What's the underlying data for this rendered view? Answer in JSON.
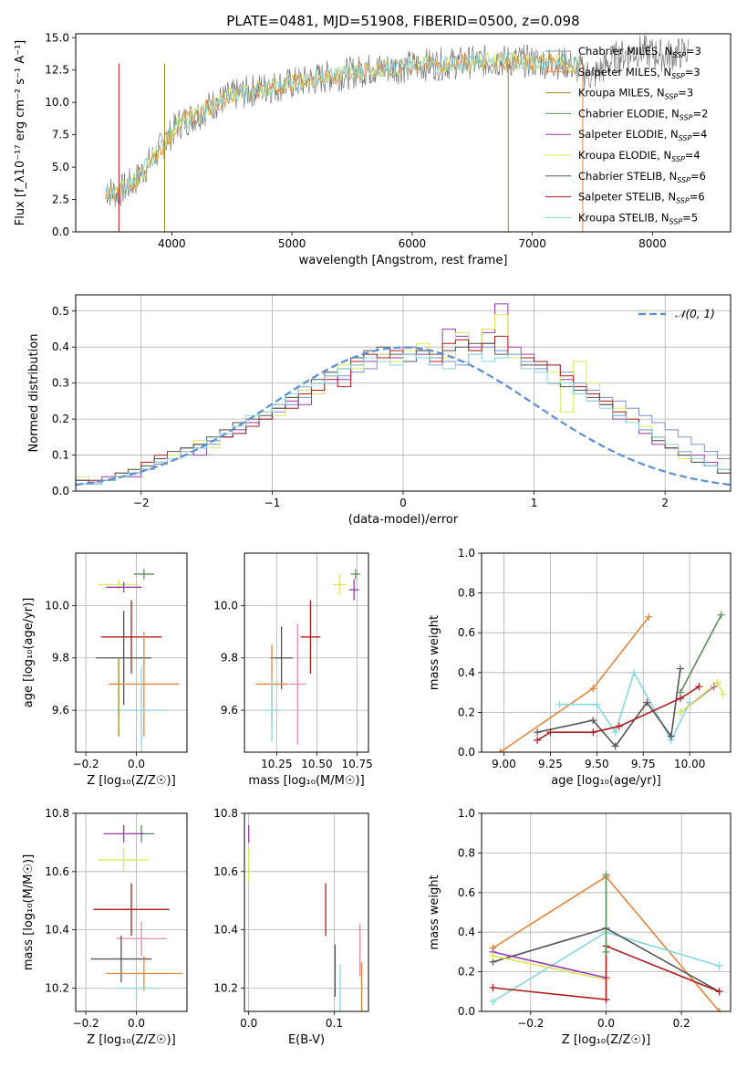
{
  "title": "PLATE=0481, MJD=51908, FIBERID=0500, z=0.098",
  "colors": {
    "Chabrier MILES": "#7b8fcf",
    "Salpeter MILES": "#e8843a",
    "Kroupa MILES": "#a38a1e",
    "Chabrier ELODIE": "#5a8f5a",
    "Salpeter ELODIE": "#9b3ab0",
    "Kroupa ELODIE": "#d8ea5a",
    "Chabrier STELIB": "#555555",
    "Salpeter STELIB": "#b01c1c",
    "Kroupa STELIB": "#86d8e0",
    "pink": "#e58ab0",
    "gauss": "#5b8fd6"
  },
  "chart_data": [
    {
      "id": "spectrum",
      "type": "line",
      "xlabel": "wavelength [Angstrom, rest frame]",
      "ylabel": "Flux [f_λ10⁻¹⁷ erg cm⁻² s⁻¹ A⁻¹]",
      "xlim": [
        3200,
        8650
      ],
      "ylim": [
        0,
        15.3
      ],
      "xticks": [
        4000,
        5000,
        6000,
        7000,
        8000
      ],
      "yticks": [
        0.0,
        2.5,
        5.0,
        7.5,
        10.0,
        12.5,
        15.0
      ],
      "legend": [
        "Chabrier MILES, N_SSP=3",
        "Salpeter MILES, N_SSP=3",
        "Kroupa MILES, N_SSP=3",
        "Chabrier ELODIE, N_SSP=2",
        "Salpeter ELODIE, N_SSP=4",
        "Kroupa ELODIE, N_SSP=4",
        "Chabrier STELIB, N_SSP=6",
        "Salpeter STELIB, N_SSP=6",
        "Kroupa STELIB, N_SSP=5"
      ],
      "legend_placement": "top-right",
      "continuum": {
        "x": [
          3450,
          3550,
          3700,
          3850,
          3950,
          4050,
          4200,
          4350,
          4500,
          4700,
          4900,
          5100,
          5300,
          5500,
          5700,
          5900,
          6100,
          6300,
          6500,
          6700,
          6900,
          7100,
          7300,
          7400
        ],
        "y": [
          3.2,
          3.0,
          4.0,
          5.8,
          7.0,
          8.3,
          9.0,
          9.9,
          10.5,
          11.0,
          11.3,
          11.6,
          12.0,
          12.3,
          12.6,
          12.7,
          12.9,
          13.0,
          13.1,
          13.2,
          13.2,
          13.1,
          13.0,
          12.8
        ]
      },
      "data_flux": {
        "x": [
          3450,
          3550,
          3700,
          3850,
          3950,
          4050,
          4200,
          4350,
          4500,
          4700,
          4900,
          5100,
          5300,
          5500,
          5700,
          5900,
          6100,
          6300,
          6500,
          6700,
          6900,
          7100,
          7300,
          7500,
          7700,
          7900,
          8100,
          8300
        ],
        "y": [
          3.2,
          3.0,
          4.0,
          5.8,
          7.0,
          8.3,
          9.0,
          9.9,
          10.5,
          11.0,
          11.3,
          11.6,
          12.0,
          12.3,
          12.6,
          12.7,
          12.9,
          13.0,
          13.1,
          13.2,
          13.2,
          13.1,
          13.0,
          12.0,
          13.5,
          14.0,
          13.6,
          13.9
        ]
      }
    },
    {
      "id": "residuals",
      "type": "histogram",
      "xlabel": "(data-model)/error",
      "ylabel": "Normed distribution",
      "xlim": [
        -2.5,
        2.5
      ],
      "ylim": [
        0,
        0.545
      ],
      "xticks": [
        -2,
        -1,
        0,
        1,
        2
      ],
      "yticks": [
        0.0,
        0.1,
        0.2,
        0.3,
        0.4,
        0.5
      ],
      "legend": [
        "𝒩(0, 1)"
      ],
      "legend_placement": "top-right",
      "bin_edges_step": 0.1,
      "series": [
        {
          "name": "Chabrier MILES",
          "values": [
            0.03,
            0.025,
            0.03,
            0.04,
            0.05,
            0.06,
            0.075,
            0.09,
            0.1,
            0.12,
            0.13,
            0.15,
            0.16,
            0.18,
            0.2,
            0.22,
            0.24,
            0.26,
            0.28,
            0.3,
            0.32,
            0.33,
            0.34,
            0.36,
            0.37,
            0.38,
            0.39,
            0.37,
            0.36,
            0.35,
            0.38,
            0.4,
            0.39,
            0.37,
            0.36,
            0.34,
            0.35,
            0.33,
            0.3,
            0.28,
            0.26,
            0.25,
            0.23,
            0.21,
            0.19,
            0.17,
            0.15,
            0.13,
            0.11,
            0.09
          ]
        },
        {
          "name": "Salpeter ELODIE",
          "values": [
            0.03,
            0.02,
            0.04,
            0.05,
            0.04,
            0.06,
            0.08,
            0.09,
            0.11,
            0.1,
            0.14,
            0.15,
            0.17,
            0.19,
            0.2,
            0.23,
            0.25,
            0.24,
            0.3,
            0.32,
            0.31,
            0.35,
            0.36,
            0.38,
            0.37,
            0.4,
            0.38,
            0.35,
            0.45,
            0.43,
            0.4,
            0.44,
            0.52,
            0.4,
            0.38,
            0.35,
            0.3,
            0.31,
            0.27,
            0.25,
            0.24,
            0.2,
            0.19,
            0.16,
            0.13,
            0.12,
            0.1,
            0.1,
            0.08,
            0.06
          ]
        },
        {
          "name": "Kroupa ELODIE",
          "values": [
            0.04,
            0.03,
            0.03,
            0.05,
            0.06,
            0.07,
            0.08,
            0.1,
            0.12,
            0.14,
            0.12,
            0.17,
            0.18,
            0.2,
            0.22,
            0.21,
            0.26,
            0.28,
            0.27,
            0.33,
            0.35,
            0.34,
            0.37,
            0.38,
            0.36,
            0.39,
            0.41,
            0.36,
            0.37,
            0.44,
            0.39,
            0.45,
            0.49,
            0.37,
            0.34,
            0.36,
            0.33,
            0.22,
            0.36,
            0.3,
            0.25,
            0.23,
            0.2,
            0.18,
            0.14,
            0.12,
            0.09,
            0.08,
            0.07,
            0.06
          ]
        },
        {
          "name": "Salpeter STELIB",
          "values": [
            0.02,
            0.03,
            0.03,
            0.04,
            0.05,
            0.08,
            0.1,
            0.09,
            0.12,
            0.13,
            0.14,
            0.15,
            0.16,
            0.18,
            0.2,
            0.24,
            0.23,
            0.27,
            0.28,
            0.31,
            0.29,
            0.36,
            0.38,
            0.37,
            0.39,
            0.38,
            0.37,
            0.36,
            0.41,
            0.42,
            0.39,
            0.41,
            0.43,
            0.38,
            0.37,
            0.36,
            0.35,
            0.32,
            0.29,
            0.27,
            0.25,
            0.22,
            0.2,
            0.17,
            0.15,
            0.12,
            0.11,
            0.09,
            0.07,
            0.05
          ]
        },
        {
          "name": "Chabrier STELIB",
          "values": [
            0.03,
            0.02,
            0.03,
            0.05,
            0.06,
            0.07,
            0.09,
            0.11,
            0.12,
            0.13,
            0.15,
            0.17,
            0.19,
            0.2,
            0.21,
            0.23,
            0.26,
            0.29,
            0.31,
            0.33,
            0.34,
            0.37,
            0.39,
            0.4,
            0.38,
            0.36,
            0.39,
            0.38,
            0.39,
            0.4,
            0.41,
            0.41,
            0.38,
            0.38,
            0.35,
            0.35,
            0.3,
            0.29,
            0.28,
            0.26,
            0.24,
            0.21,
            0.19,
            0.17,
            0.14,
            0.12,
            0.1,
            0.08,
            0.07,
            0.05
          ]
        },
        {
          "name": "Kroupa STELIB",
          "values": [
            0.02,
            0.02,
            0.03,
            0.04,
            0.05,
            0.06,
            0.08,
            0.09,
            0.11,
            0.12,
            0.14,
            0.16,
            0.18,
            0.21,
            0.22,
            0.24,
            0.27,
            0.29,
            0.3,
            0.32,
            0.34,
            0.35,
            0.37,
            0.36,
            0.35,
            0.38,
            0.37,
            0.35,
            0.34,
            0.36,
            0.38,
            0.36,
            0.37,
            0.38,
            0.34,
            0.33,
            0.3,
            0.3,
            0.27,
            0.25,
            0.23,
            0.21,
            0.19,
            0.17,
            0.15,
            0.13,
            0.11,
            0.09,
            0.07,
            0.06
          ]
        }
      ],
      "gaussian": {
        "mu": 0,
        "sigma": 1
      }
    },
    {
      "id": "age-vs-Z",
      "type": "errorbar",
      "xlabel": "Z [log₁₀(Z/Z☉)]",
      "ylabel": "age  [log₁₀(age/yr)]",
      "xlim": [
        -0.24,
        0.2
      ],
      "ylim": [
        9.44,
        10.2
      ],
      "xticks": [
        -0.2,
        0.0
      ],
      "yticks": [
        9.6,
        9.8,
        10.0
      ],
      "points": [
        {
          "model": "Chabrier ELODIE",
          "x": 0.03,
          "xerr": 0.04,
          "y": 10.12,
          "yerr": 0.02
        },
        {
          "model": "Kroupa ELODIE",
          "x": -0.07,
          "xerr": 0.08,
          "y": 10.08,
          "yerr": 0.02
        },
        {
          "model": "Salpeter ELODIE",
          "x": -0.05,
          "xerr": 0.07,
          "y": 10.07,
          "yerr": 0.02
        },
        {
          "model": "Salpeter STELIB",
          "x": -0.02,
          "xerr": 0.12,
          "y": 9.88,
          "yerr": 0.14
        },
        {
          "model": "Chabrier STELIB",
          "x": -0.05,
          "xerr": 0.11,
          "y": 9.8,
          "yerr": 0.18
        },
        {
          "model": "Salpeter MILES",
          "x": 0.03,
          "xerr": 0.14,
          "y": 9.7,
          "yerr": 0.2
        },
        {
          "model": "Kroupa STELIB",
          "x": 0.02,
          "xerr": 0.1,
          "y": 9.6,
          "yerr": 0.17
        },
        {
          "model": "Kroupa MILES",
          "x": -0.07,
          "xerr": 0.0,
          "y": 9.65,
          "yerr": 0.15
        }
      ]
    },
    {
      "id": "age-vs-mass",
      "type": "errorbar",
      "xlabel": "mass [log₁₀(M/M☉)]",
      "ylabel": "",
      "xlim": [
        10.05,
        10.82
      ],
      "ylim": [
        9.44,
        10.2
      ],
      "xticks": [
        10.25,
        10.5,
        10.75
      ],
      "yticks": [
        9.8,
        10.0,
        9.6
      ],
      "points": [
        {
          "model": "Chabrier ELODIE",
          "x": 10.74,
          "xerr": 0.03,
          "y": 10.12,
          "yerr": 0.02
        },
        {
          "model": "Kroupa ELODIE",
          "x": 10.64,
          "xerr": 0.04,
          "y": 10.08,
          "yerr": 0.04
        },
        {
          "model": "Salpeter ELODIE",
          "x": 10.73,
          "xerr": 0.03,
          "y": 10.06,
          "yerr": 0.04
        },
        {
          "model": "Salpeter STELIB",
          "x": 10.46,
          "xerr": 0.06,
          "y": 9.88,
          "yerr": 0.14
        },
        {
          "model": "Chabrier STELIB",
          "x": 10.28,
          "xerr": 0.07,
          "y": 9.8,
          "yerr": 0.12
        },
        {
          "model": "pink",
          "x": 10.38,
          "xerr": 0.05,
          "y": 9.7,
          "yerr": 0.23
        },
        {
          "model": "Salpeter MILES",
          "x": 10.22,
          "xerr": 0.1,
          "y": 9.7,
          "yerr": 0.15
        },
        {
          "model": "Kroupa STELIB",
          "x": 10.22,
          "xerr": 0.05,
          "y": 9.6,
          "yerr": 0.12
        }
      ]
    },
    {
      "id": "weight-vs-age",
      "type": "line",
      "xlabel": "age  [log₁₀(age/yr)]",
      "ylabel": "mass weight",
      "xlim": [
        8.88,
        10.22
      ],
      "ylim": [
        0,
        1
      ],
      "xticks": [
        9.0,
        9.25,
        9.5,
        9.75,
        10.0
      ],
      "yticks": [
        0.0,
        0.2,
        0.4,
        0.6,
        0.8,
        1.0
      ],
      "series": [
        {
          "name": "Salpeter MILES",
          "x": [
            8.98,
            9.48,
            9.78
          ],
          "y": [
            0.0,
            0.32,
            0.68
          ]
        },
        {
          "name": "Chabrier ELODIE",
          "x": [
            9.95,
            10.17
          ],
          "y": [
            0.3,
            0.69
          ]
        },
        {
          "name": "Kroupa STELIB",
          "x": [
            9.3,
            9.5,
            9.6,
            9.7,
            9.9,
            10.0
          ],
          "y": [
            0.24,
            0.24,
            0.1,
            0.4,
            0.06,
            0.25
          ]
        },
        {
          "name": "Chabrier STELIB",
          "x": [
            9.18,
            9.48,
            9.6,
            9.77,
            9.9,
            9.95
          ],
          "y": [
            0.1,
            0.16,
            0.03,
            0.25,
            0.08,
            0.42
          ]
        },
        {
          "name": "Salpeter STELIB",
          "x": [
            9.18,
            9.25,
            9.48,
            9.62,
            9.95,
            10.05
          ],
          "y": [
            0.06,
            0.1,
            0.1,
            0.13,
            0.27,
            0.33
          ]
        },
        {
          "name": "Salpeter ELODIE",
          "x": [
            9.95,
            10.13
          ],
          "y": [
            0.2,
            0.33
          ]
        },
        {
          "name": "Kroupa ELODIE",
          "x": [
            9.95,
            10.15,
            10.18
          ],
          "y": [
            0.2,
            0.35,
            0.29
          ]
        }
      ]
    },
    {
      "id": "mass-vs-Z",
      "type": "errorbar",
      "xlabel": "Z [log₁₀(Z/Z☉)]",
      "ylabel": "mass [log₁₀(M/M☉)]",
      "xlim": [
        -0.24,
        0.2
      ],
      "ylim": [
        10.12,
        10.8
      ],
      "xticks": [
        -0.2,
        0.0
      ],
      "yticks": [
        10.2,
        10.4,
        10.6,
        10.8
      ],
      "points": [
        {
          "model": "Chabrier ELODIE",
          "x": 0.02,
          "xerr": 0.05,
          "y": 10.73,
          "yerr": 0.03
        },
        {
          "model": "Salpeter ELODIE",
          "x": -0.05,
          "xerr": 0.08,
          "y": 10.73,
          "yerr": 0.03
        },
        {
          "model": "Kroupa ELODIE",
          "x": -0.05,
          "xerr": 0.1,
          "y": 10.64,
          "yerr": 0.04
        },
        {
          "model": "Salpeter STELIB",
          "x": -0.02,
          "xerr": 0.15,
          "y": 10.47,
          "yerr": 0.09
        },
        {
          "model": "pink",
          "x": 0.02,
          "xerr": 0.1,
          "y": 10.37,
          "yerr": 0.06
        },
        {
          "model": "Chabrier STELIB",
          "x": -0.06,
          "xerr": 0.12,
          "y": 10.3,
          "yerr": 0.08
        },
        {
          "model": "Salpeter MILES",
          "x": 0.03,
          "xerr": 0.15,
          "y": 10.25,
          "yerr": 0.06
        },
        {
          "model": "Kroupa STELIB",
          "x": 0.0,
          "xerr": 0.08,
          "y": 10.2,
          "yerr": 0.05
        }
      ]
    },
    {
      "id": "mass-vs-ebv",
      "type": "errorbar",
      "xlabel": "E(B-V)",
      "ylabel": "",
      "xlim": [
        -0.005,
        0.14
      ],
      "ylim": [
        10.12,
        10.8
      ],
      "xticks": [
        0.0,
        0.1
      ],
      "yticks": [
        10.2,
        10.4,
        10.6,
        10.8
      ],
      "points": [
        {
          "model": "Salpeter ELODIE",
          "x": 0.0,
          "xerr": 0.0,
          "y": 10.73,
          "yerr": 0.03
        },
        {
          "model": "Kroupa ELODIE",
          "x": 0.0,
          "xerr": 0.0,
          "y": 10.62,
          "yerr": 0.06
        },
        {
          "model": "Salpeter STELIB",
          "x": 0.09,
          "xerr": 0.0,
          "y": 10.47,
          "yerr": 0.09
        },
        {
          "model": "Chabrier STELIB",
          "x": 0.101,
          "xerr": 0.0,
          "y": 10.26,
          "yerr": 0.09
        },
        {
          "model": "Kroupa STELIB",
          "x": 0.107,
          "xerr": 0.0,
          "y": 10.19,
          "yerr": 0.09
        },
        {
          "model": "pink",
          "x": 0.13,
          "xerr": 0.0,
          "y": 10.33,
          "yerr": 0.09
        },
        {
          "model": "Salpeter MILES",
          "x": 0.132,
          "xerr": 0.0,
          "y": 10.2,
          "yerr": 0.09
        }
      ]
    },
    {
      "id": "weight-vs-Z",
      "type": "line",
      "xlabel": "Z [log₁₀(Z/Z☉)]",
      "ylabel": "mass weight",
      "xlim": [
        -0.33,
        0.33
      ],
      "ylim": [
        0,
        1
      ],
      "xticks": [
        -0.2,
        0.0,
        0.2
      ],
      "yticks": [
        0.0,
        0.2,
        0.4,
        0.6,
        0.8,
        1.0
      ],
      "series": [
        {
          "name": "Salpeter MILES",
          "x": [
            -0.3,
            0.0,
            0.3
          ],
          "y": [
            0.32,
            0.68,
            0.0
          ]
        },
        {
          "name": "Kroupa STELIB",
          "x": [
            -0.3,
            0.0,
            0.3
          ],
          "y": [
            0.05,
            0.4,
            0.23
          ]
        },
        {
          "name": "Chabrier STELIB",
          "x": [
            -0.3,
            0.0,
            0.3
          ],
          "y": [
            0.25,
            0.42,
            0.1
          ]
        },
        {
          "name": "Salpeter ELODIE",
          "x": [
            -0.3,
            0.0
          ],
          "y": [
            0.3,
            0.17
          ]
        },
        {
          "name": "Kroupa ELODIE",
          "x": [
            -0.3,
            0.0
          ],
          "y": [
            0.28,
            0.16
          ]
        },
        {
          "name": "Salpeter STELIB",
          "x": [
            -0.3,
            0.0,
            0.0,
            0.3
          ],
          "y": [
            0.12,
            0.06,
            0.33,
            0.1
          ]
        },
        {
          "name": "Chabrier ELODIE",
          "x": [
            0.0,
            0.0
          ],
          "y": [
            0.3,
            0.69
          ]
        }
      ]
    }
  ]
}
